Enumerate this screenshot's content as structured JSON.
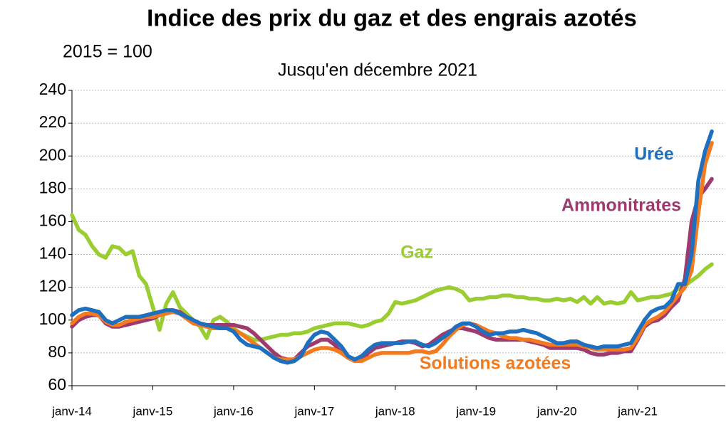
{
  "chart_data": {
    "type": "line",
    "title": "Indice des prix du gaz et des engrais azotés",
    "y_label": "2015 = 100",
    "subtitle": "Jusqu'en décembre 2021",
    "x": [
      0,
      1,
      2,
      3,
      4,
      5,
      6,
      7,
      8,
      9,
      10,
      11,
      12,
      13,
      14,
      15,
      16,
      17,
      18,
      19,
      20,
      21,
      22,
      23,
      24,
      25,
      26,
      27,
      28,
      29,
      30,
      31,
      32,
      33,
      34,
      35,
      36,
      37,
      38,
      39,
      40,
      41,
      42,
      43,
      44,
      45,
      46,
      47,
      48,
      49,
      50,
      51,
      52,
      53,
      54,
      55,
      56,
      57,
      58,
      59,
      60,
      61,
      62,
      63,
      64,
      65,
      66,
      67,
      68,
      69,
      70,
      71,
      72,
      73,
      74,
      75,
      76,
      77,
      78,
      79,
      80,
      81,
      82,
      83,
      84,
      85,
      86,
      87,
      88,
      89,
      90,
      91,
      92,
      93,
      94,
      95
    ],
    "xlim": [
      0,
      97
    ],
    "xticks": [
      {
        "value": 0,
        "label": "janv-14"
      },
      {
        "value": 12,
        "label": "janv-15"
      },
      {
        "value": 24,
        "label": "janv-16"
      },
      {
        "value": 36,
        "label": "janv-17"
      },
      {
        "value": 48,
        "label": "janv-18"
      },
      {
        "value": 60,
        "label": "janv-19"
      },
      {
        "value": 72,
        "label": "janv-20"
      },
      {
        "value": 84,
        "label": "janv-21"
      }
    ],
    "ylim": [
      60,
      240
    ],
    "yticks": [
      60,
      80,
      100,
      120,
      140,
      160,
      180,
      200,
      220,
      240
    ],
    "grid": true,
    "series": [
      {
        "name": "Urée",
        "color": "#1f6fc0",
        "values": [
          103,
          106,
          107,
          106,
          105,
          100,
          98,
          100,
          102,
          102,
          102,
          103,
          104,
          105,
          106,
          106,
          104,
          102,
          100,
          98,
          97,
          96,
          95,
          95,
          93,
          88,
          85,
          84,
          83,
          80,
          77,
          75,
          74,
          75,
          78,
          86,
          91,
          93,
          92,
          88,
          84,
          78,
          76,
          78,
          82,
          85,
          86,
          86,
          86,
          86,
          87,
          87,
          85,
          84,
          86,
          89,
          92,
          96,
          98,
          98,
          96,
          93,
          91,
          92,
          92,
          93,
          93,
          94,
          93,
          92,
          90,
          88,
          86,
          86,
          87,
          87,
          85,
          84,
          83,
          84,
          84,
          84,
          85,
          86,
          93,
          100,
          105,
          107,
          108,
          112,
          122,
          122,
          140,
          185,
          203,
          215
        ]
      },
      {
        "name": "Ammonitrates",
        "color": "#9e3a6e",
        "values": [
          96,
          100,
          102,
          103,
          103,
          98,
          96,
          96,
          97,
          98,
          99,
          100,
          101,
          103,
          105,
          106,
          105,
          102,
          100,
          98,
          97,
          97,
          97,
          97,
          97,
          96,
          95,
          92,
          88,
          84,
          80,
          77,
          76,
          76,
          80,
          84,
          86,
          88,
          88,
          85,
          80,
          77,
          75,
          76,
          80,
          83,
          84,
          85,
          86,
          87,
          87,
          86,
          84,
          85,
          88,
          91,
          93,
          95,
          95,
          94,
          93,
          91,
          89,
          88,
          88,
          88,
          88,
          88,
          87,
          86,
          85,
          83,
          83,
          83,
          83,
          83,
          82,
          80,
          79,
          79,
          80,
          80,
          81,
          81,
          88,
          96,
          99,
          100,
          103,
          108,
          112,
          125,
          160,
          175,
          180,
          186
        ]
      },
      {
        "name": "Solutions azotées",
        "color": "#f47a1e",
        "values": [
          98,
          102,
          104,
          104,
          103,
          99,
          97,
          97,
          99,
          100,
          101,
          102,
          102,
          103,
          104,
          105,
          104,
          101,
          98,
          97,
          96,
          95,
          95,
          95,
          94,
          92,
          89,
          86,
          83,
          80,
          77,
          76,
          76,
          76,
          78,
          80,
          82,
          83,
          83,
          82,
          80,
          77,
          75,
          75,
          77,
          79,
          80,
          80,
          80,
          80,
          80,
          81,
          81,
          80,
          81,
          85,
          90,
          94,
          97,
          98,
          97,
          95,
          93,
          92,
          90,
          89,
          89,
          88,
          88,
          87,
          86,
          85,
          85,
          85,
          85,
          85,
          84,
          83,
          82,
          82,
          82,
          82,
          82,
          83,
          89,
          97,
          100,
          102,
          105,
          110,
          115,
          120,
          130,
          165,
          195,
          208
        ]
      },
      {
        "name": "Gaz",
        "color": "#9acd32",
        "values": [
          164,
          155,
          152,
          145,
          140,
          138,
          145,
          144,
          140,
          142,
          127,
          122,
          108,
          94,
          110,
          117,
          108,
          104,
          100,
          96,
          89,
          100,
          102,
          99,
          95,
          92,
          90,
          88,
          88,
          89,
          90,
          91,
          91,
          92,
          92,
          93,
          95,
          96,
          97,
          98,
          98,
          98,
          97,
          96,
          97,
          99,
          100,
          104,
          111,
          110,
          111,
          112,
          114,
          116,
          118,
          119,
          120,
          119,
          117,
          112,
          113,
          113,
          114,
          114,
          115,
          115,
          114,
          114,
          113,
          113,
          112,
          112,
          113,
          112,
          113,
          111,
          114,
          110,
          114,
          110,
          111,
          110,
          111,
          117,
          112,
          113,
          114,
          114,
          115,
          116,
          119,
          121,
          124,
          127,
          131,
          134
        ]
      }
    ]
  }
}
